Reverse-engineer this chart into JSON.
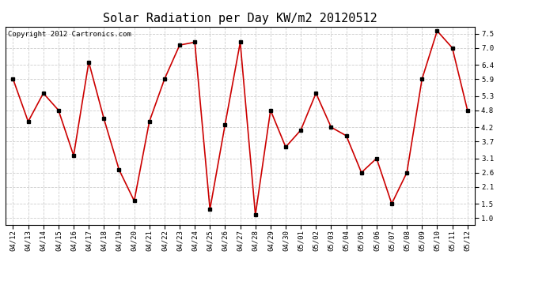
{
  "title": "Solar Radiation per Day KW/m2 20120512",
  "copyright_text": "Copyright 2012 Cartronics.com",
  "labels": [
    "04/12",
    "04/13",
    "04/14",
    "04/15",
    "04/16",
    "04/17",
    "04/18",
    "04/19",
    "04/20",
    "04/21",
    "04/22",
    "04/23",
    "04/24",
    "04/25",
    "04/26",
    "04/27",
    "04/28",
    "04/29",
    "04/30",
    "05/01",
    "05/02",
    "05/03",
    "05/04",
    "05/05",
    "05/06",
    "05/07",
    "05/08",
    "05/09",
    "05/10",
    "05/11",
    "05/12"
  ],
  "values": [
    5.9,
    4.4,
    5.4,
    4.8,
    3.2,
    6.5,
    4.5,
    2.7,
    1.6,
    4.4,
    5.9,
    7.1,
    7.2,
    1.3,
    4.3,
    7.2,
    1.1,
    4.8,
    3.5,
    4.1,
    5.4,
    4.2,
    3.9,
    2.6,
    3.1,
    1.5,
    2.6,
    5.9,
    7.6,
    7.0,
    4.8
  ],
  "line_color": "#cc0000",
  "marker_color": "#000000",
  "bg_color": "#ffffff",
  "grid_color": "#cccccc",
  "ylim": [
    0.75,
    7.75
  ],
  "yticks": [
    1.0,
    1.5,
    2.1,
    2.6,
    3.1,
    3.7,
    4.2,
    4.8,
    5.3,
    5.9,
    6.4,
    7.0,
    7.5
  ],
  "title_fontsize": 11,
  "copyright_fontsize": 6.5,
  "tick_fontsize": 6.5,
  "fig_width": 6.9,
  "fig_height": 3.75,
  "dpi": 100
}
